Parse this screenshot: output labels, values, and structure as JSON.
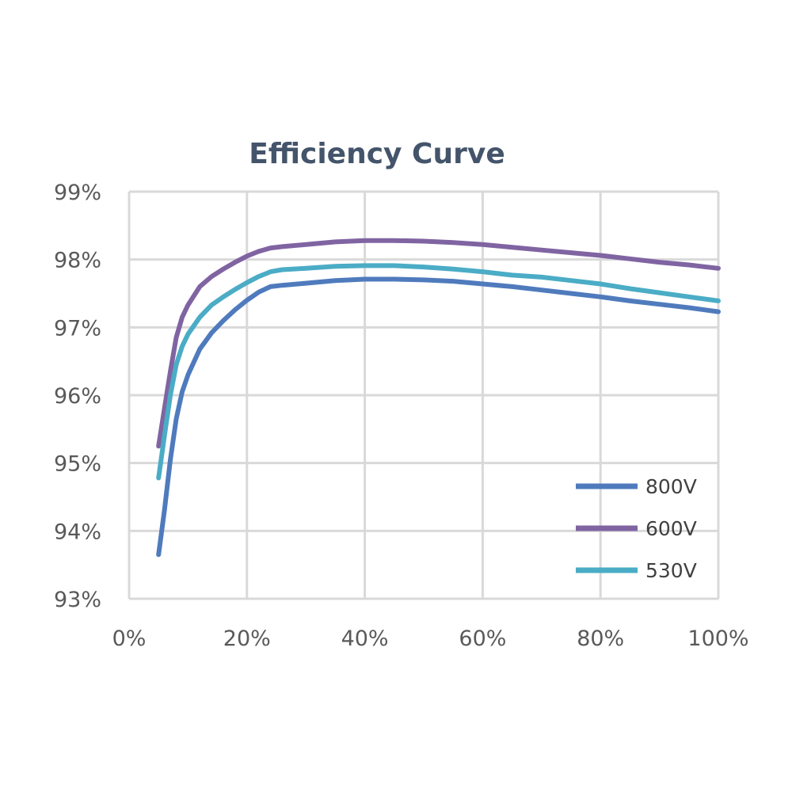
{
  "chart_data": {
    "type": "line",
    "title": "Efficiency Curve",
    "xlabel": "",
    "ylabel": "",
    "xlim": [
      0,
      100
    ],
    "ylim": [
      93,
      99
    ],
    "x_ticks": [
      {
        "value": 0,
        "label": "0%"
      },
      {
        "value": 20,
        "label": "20%"
      },
      {
        "value": 40,
        "label": "40%"
      },
      {
        "value": 60,
        "label": "60%"
      },
      {
        "value": 80,
        "label": "80%"
      },
      {
        "value": 100,
        "label": "100%"
      }
    ],
    "y_ticks": [
      {
        "value": 93,
        "label": "93%"
      },
      {
        "value": 94,
        "label": "94%"
      },
      {
        "value": 95,
        "label": "95%"
      },
      {
        "value": 96,
        "label": "96%"
      },
      {
        "value": 97,
        "label": "97%"
      },
      {
        "value": 98,
        "label": "98%"
      },
      {
        "value": 99,
        "label": "99%"
      }
    ],
    "x_grid_values": [
      0,
      20,
      40,
      60,
      80,
      100
    ],
    "grid": true,
    "legend_position": "bottom-right",
    "series": [
      {
        "name": "800V",
        "color": "#4f7bbd",
        "x": [
          5,
          6,
          7,
          8,
          9,
          10,
          12,
          14,
          16,
          18,
          20,
          22,
          24,
          26,
          30,
          35,
          40,
          45,
          50,
          55,
          60,
          65,
          70,
          75,
          80,
          85,
          90,
          95,
          100
        ],
        "y": [
          93.65,
          94.3,
          95.05,
          95.65,
          96.05,
          96.3,
          96.68,
          96.92,
          97.1,
          97.26,
          97.4,
          97.52,
          97.6,
          97.62,
          97.65,
          97.69,
          97.71,
          97.71,
          97.7,
          97.68,
          97.64,
          97.6,
          97.55,
          97.5,
          97.45,
          97.39,
          97.34,
          97.29,
          97.23
        ]
      },
      {
        "name": "600V",
        "color": "#8064a2",
        "x": [
          5,
          6,
          7,
          8,
          9,
          10,
          12,
          14,
          16,
          18,
          20,
          22,
          24,
          26,
          30,
          35,
          40,
          45,
          50,
          55,
          60,
          65,
          70,
          75,
          80,
          85,
          90,
          95,
          100
        ],
        "y": [
          95.25,
          95.8,
          96.35,
          96.85,
          97.15,
          97.33,
          97.6,
          97.75,
          97.86,
          97.96,
          98.05,
          98.12,
          98.17,
          98.19,
          98.22,
          98.26,
          98.28,
          98.28,
          98.27,
          98.25,
          98.22,
          98.18,
          98.14,
          98.1,
          98.06,
          98.01,
          97.96,
          97.92,
          97.87
        ]
      },
      {
        "name": "530V",
        "color": "#4bacc6",
        "x": [
          5,
          6,
          7,
          8,
          9,
          10,
          12,
          14,
          16,
          18,
          20,
          22,
          24,
          26,
          30,
          35,
          40,
          45,
          50,
          55,
          60,
          65,
          70,
          75,
          80,
          85,
          90,
          95,
          100
        ],
        "y": [
          94.78,
          95.4,
          96.0,
          96.45,
          96.72,
          96.9,
          97.15,
          97.33,
          97.45,
          97.56,
          97.66,
          97.75,
          97.82,
          97.85,
          97.87,
          97.9,
          97.91,
          97.91,
          97.89,
          97.86,
          97.82,
          97.77,
          97.74,
          97.69,
          97.64,
          97.57,
          97.51,
          97.45,
          97.39
        ]
      }
    ]
  }
}
